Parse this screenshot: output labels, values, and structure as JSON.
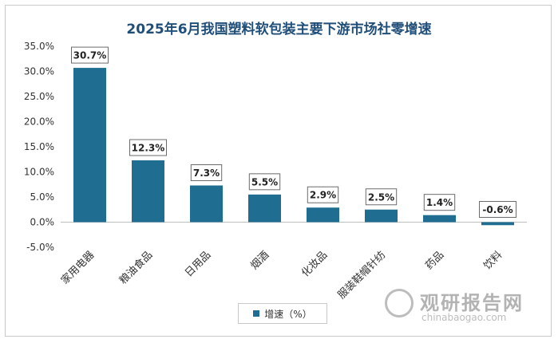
{
  "chart_data": {
    "type": "bar",
    "title": "2025年6月我国塑料软包装主要下游市场社零增速",
    "categories": [
      "家用电器",
      "粮油食品",
      "日用品",
      "烟酒",
      "化妆品",
      "服装鞋帽针纺",
      "药品",
      "饮料"
    ],
    "series": [
      {
        "name": "增速（%）",
        "values": [
          30.7,
          12.3,
          7.3,
          5.5,
          2.9,
          2.5,
          1.4,
          -0.6
        ]
      }
    ],
    "data_labels": [
      "30.7%",
      "12.3%",
      "7.3%",
      "5.5%",
      "2.9%",
      "2.5%",
      "1.4%",
      "-0.6%"
    ],
    "y_ticks": [
      "-5.0%",
      "0.0%",
      "5.0%",
      "10.0%",
      "15.0%",
      "20.0%",
      "25.0%",
      "30.0%",
      "35.0%"
    ],
    "ylim": [
      -5,
      35
    ],
    "grid": false,
    "legend_position": "bottom",
    "bar_color": "#1f6e91"
  },
  "watermark": {
    "cn": "观研报告网",
    "en": "chinabaogao.com"
  }
}
